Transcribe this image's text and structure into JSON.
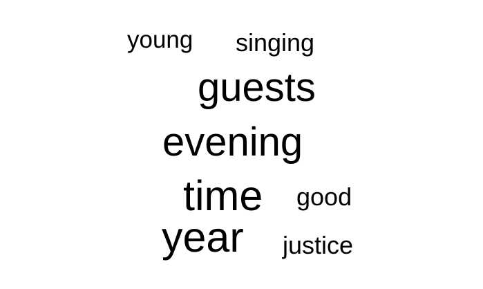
{
  "words": [
    {
      "text": "young"
    },
    {
      "text": "singing"
    },
    {
      "text": "guests"
    },
    {
      "text": "evening"
    },
    {
      "text": "time"
    },
    {
      "text": "good"
    },
    {
      "text": "year"
    },
    {
      "text": "justice"
    }
  ],
  "colors": {
    "background": "#ffffff",
    "text": "#000000"
  }
}
